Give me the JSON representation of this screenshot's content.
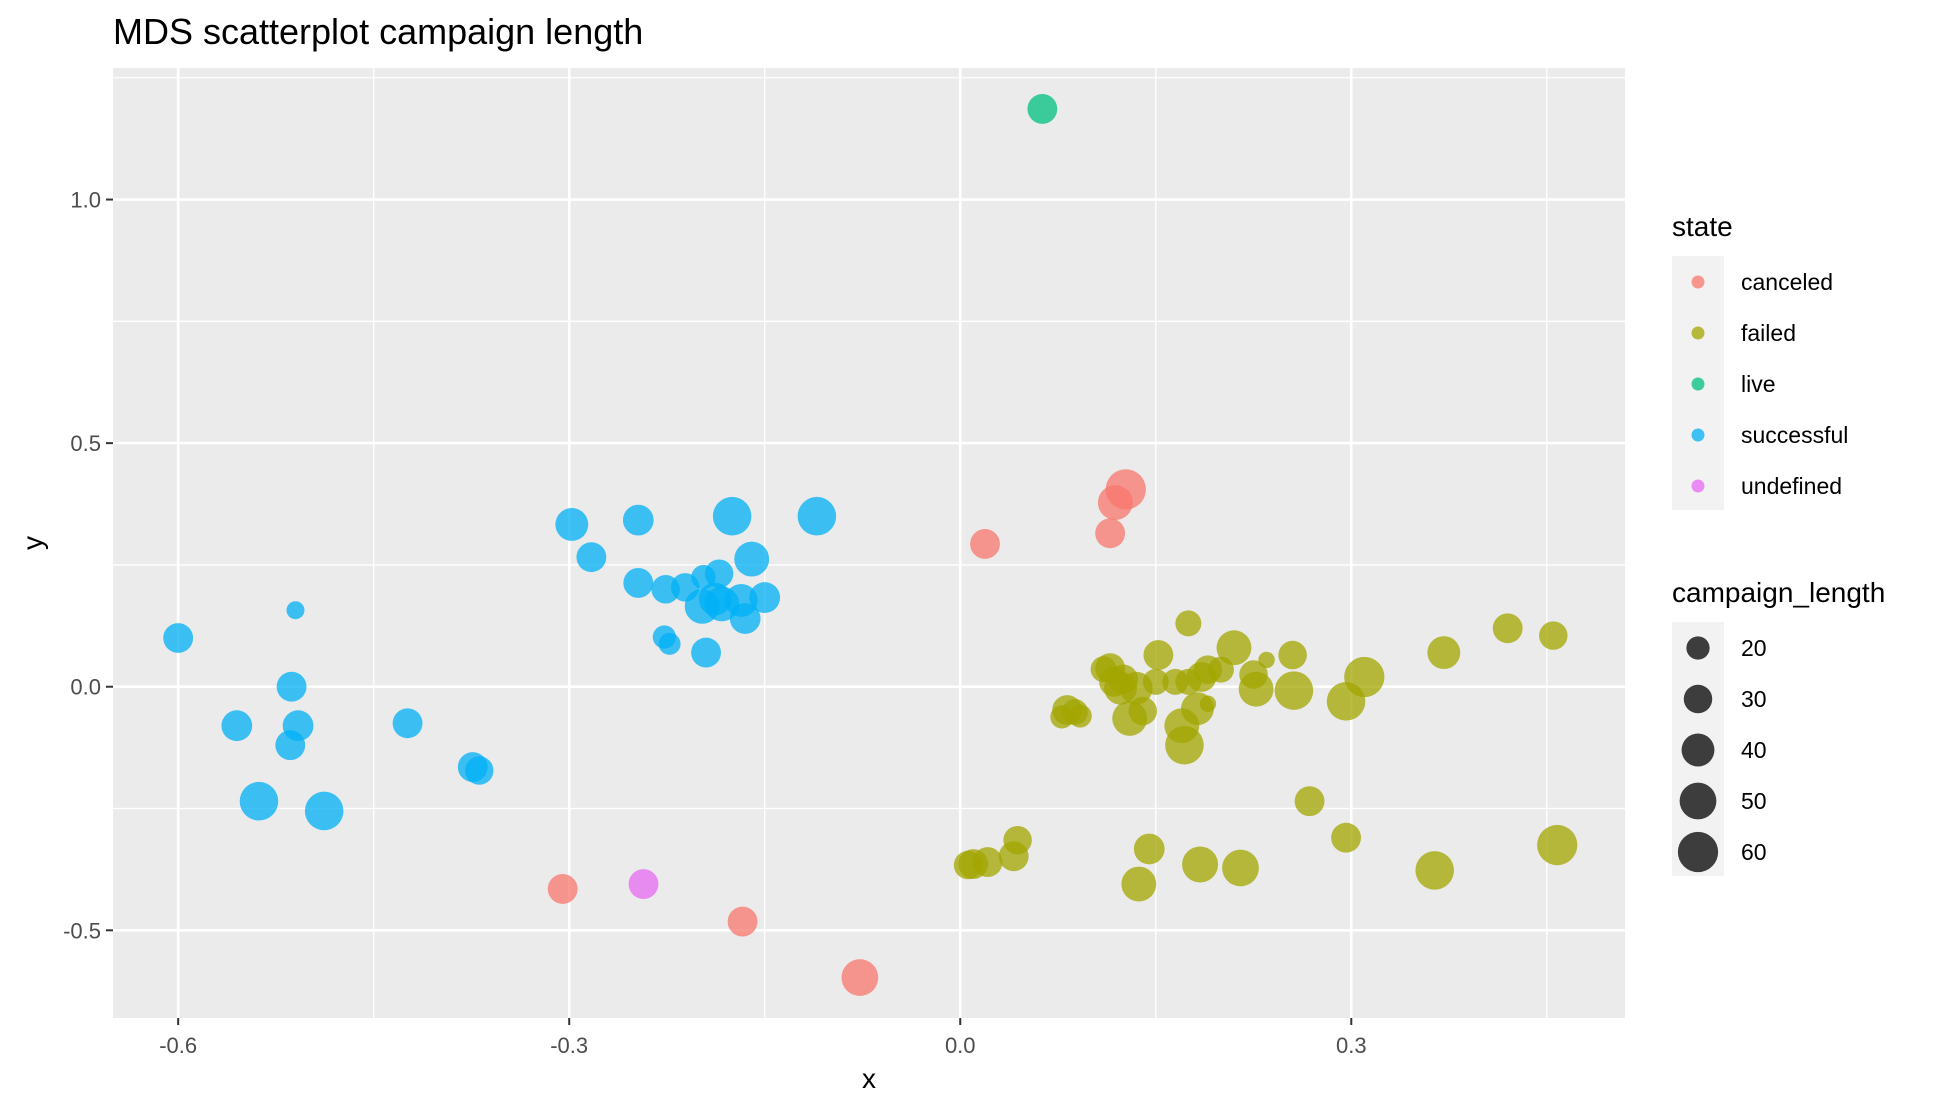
{
  "chart_data": {
    "type": "scatter",
    "title": "MDS scatterplot campaign length",
    "xlabel": "x",
    "ylabel": "y",
    "xlim": [
      -0.65,
      0.51
    ],
    "ylim": [
      -0.68,
      1.27
    ],
    "x_ticks": [
      -0.6,
      -0.3,
      0.0,
      0.3
    ],
    "x_tick_labels": [
      "-0.6",
      "-0.3",
      "0.0",
      "0.3"
    ],
    "y_ticks": [
      1.0,
      0.5,
      0.0,
      -0.5
    ],
    "y_tick_labels": [
      "1.0",
      "0.5",
      "0.0",
      "-0.5"
    ],
    "grid": true,
    "legend_position": "right",
    "legends": {
      "color": {
        "title": "state",
        "entries": [
          {
            "label": "canceled",
            "color": "#F8766D"
          },
          {
            "label": "failed",
            "color": "#A3A500"
          },
          {
            "label": "live",
            "color": "#00BF7D"
          },
          {
            "label": "successful",
            "color": "#00B0F6"
          },
          {
            "label": "undefined",
            "color": "#E76BF3"
          }
        ]
      },
      "size": {
        "title": "campaign_length",
        "entries": [
          {
            "label": "20",
            "value": 20
          },
          {
            "label": "30",
            "value": 30
          },
          {
            "label": "40",
            "value": 40
          },
          {
            "label": "50",
            "value": 50
          },
          {
            "label": "60",
            "value": 60
          }
        ]
      }
    },
    "series": [
      {
        "name": "canceled",
        "color": "#F8766D",
        "points": [
          {
            "x": 0.127,
            "y": 0.405,
            "size": 60
          },
          {
            "x": 0.119,
            "y": 0.378,
            "size": 45
          },
          {
            "x": 0.115,
            "y": 0.315,
            "size": 33
          },
          {
            "x": 0.019,
            "y": 0.293,
            "size": 33
          },
          {
            "x": -0.305,
            "y": -0.415,
            "size": 33
          },
          {
            "x": -0.167,
            "y": -0.482,
            "size": 33
          },
          {
            "x": -0.077,
            "y": -0.597,
            "size": 50
          }
        ]
      },
      {
        "name": "failed",
        "color": "#A3A500",
        "points": [
          {
            "x": 0.455,
            "y": 0.105,
            "size": 30
          },
          {
            "x": 0.42,
            "y": 0.12,
            "size": 33
          },
          {
            "x": 0.371,
            "y": 0.07,
            "size": 40
          },
          {
            "x": 0.31,
            "y": 0.02,
            "size": 60
          },
          {
            "x": 0.296,
            "y": -0.03,
            "size": 55
          },
          {
            "x": 0.255,
            "y": 0.065,
            "size": 30
          },
          {
            "x": 0.256,
            "y": -0.008,
            "size": 55
          },
          {
            "x": 0.235,
            "y": 0.055,
            "size": 10
          },
          {
            "x": 0.225,
            "y": 0.025,
            "size": 30
          },
          {
            "x": 0.227,
            "y": -0.005,
            "size": 45
          },
          {
            "x": 0.21,
            "y": 0.08,
            "size": 45
          },
          {
            "x": 0.2,
            "y": 0.035,
            "size": 25
          },
          {
            "x": 0.19,
            "y": 0.035,
            "size": 30
          },
          {
            "x": 0.185,
            "y": 0.02,
            "size": 33
          },
          {
            "x": 0.182,
            "y": -0.045,
            "size": 40
          },
          {
            "x": 0.175,
            "y": 0.13,
            "size": 25
          },
          {
            "x": 0.175,
            "y": 0.01,
            "size": 25
          },
          {
            "x": 0.19,
            "y": -0.035,
            "size": 10
          },
          {
            "x": 0.165,
            "y": 0.01,
            "size": 25
          },
          {
            "x": 0.152,
            "y": 0.065,
            "size": 33
          },
          {
            "x": 0.15,
            "y": 0.01,
            "size": 25
          },
          {
            "x": 0.17,
            "y": -0.08,
            "size": 45
          },
          {
            "x": 0.172,
            "y": -0.12,
            "size": 55
          },
          {
            "x": 0.14,
            "y": -0.05,
            "size": 30
          },
          {
            "x": 0.135,
            "y": -0.003,
            "size": 40
          },
          {
            "x": 0.13,
            "y": -0.065,
            "size": 45
          },
          {
            "x": 0.125,
            "y": 0.015,
            "size": 33
          },
          {
            "x": 0.118,
            "y": 0.01,
            "size": 33
          },
          {
            "x": 0.115,
            "y": 0.038,
            "size": 33
          },
          {
            "x": 0.11,
            "y": 0.036,
            "size": 25
          },
          {
            "x": 0.123,
            "y": -0.003,
            "size": 40
          },
          {
            "x": 0.082,
            "y": -0.048,
            "size": 33
          },
          {
            "x": 0.092,
            "y": -0.06,
            "size": 20
          },
          {
            "x": 0.088,
            "y": -0.052,
            "size": 25
          },
          {
            "x": 0.078,
            "y": -0.062,
            "size": 20
          },
          {
            "x": 0.268,
            "y": -0.235,
            "size": 33
          },
          {
            "x": 0.296,
            "y": -0.31,
            "size": 33
          },
          {
            "x": 0.145,
            "y": -0.333,
            "size": 35
          },
          {
            "x": 0.137,
            "y": -0.405,
            "size": 45
          },
          {
            "x": 0.184,
            "y": -0.365,
            "size": 48
          },
          {
            "x": 0.215,
            "y": -0.372,
            "size": 50
          },
          {
            "x": 0.364,
            "y": -0.377,
            "size": 55
          },
          {
            "x": 0.458,
            "y": -0.325,
            "size": 60
          },
          {
            "x": 0.044,
            "y": -0.315,
            "size": 30
          },
          {
            "x": 0.041,
            "y": -0.348,
            "size": 33
          },
          {
            "x": 0.021,
            "y": -0.36,
            "size": 33
          },
          {
            "x": 0.01,
            "y": -0.364,
            "size": 33
          },
          {
            "x": 0.006,
            "y": -0.366,
            "size": 30
          }
        ]
      },
      {
        "name": "live",
        "color": "#00BF7D",
        "points": [
          {
            "x": 0.063,
            "y": 1.186,
            "size": 33
          }
        ]
      },
      {
        "name": "successful",
        "color": "#00B0F6",
        "points": [
          {
            "x": -0.6,
            "y": 0.1,
            "size": 33
          },
          {
            "x": -0.51,
            "y": 0.157,
            "size": 12
          },
          {
            "x": -0.513,
            "y": 0.0,
            "size": 33
          },
          {
            "x": -0.555,
            "y": -0.08,
            "size": 35
          },
          {
            "x": -0.508,
            "y": -0.08,
            "size": 35
          },
          {
            "x": -0.514,
            "y": -0.12,
            "size": 33
          },
          {
            "x": -0.538,
            "y": -0.235,
            "size": 55
          },
          {
            "x": -0.488,
            "y": -0.255,
            "size": 55
          },
          {
            "x": -0.424,
            "y": -0.075,
            "size": 33
          },
          {
            "x": -0.374,
            "y": -0.165,
            "size": 33
          },
          {
            "x": -0.369,
            "y": -0.172,
            "size": 30
          },
          {
            "x": -0.298,
            "y": 0.333,
            "size": 40
          },
          {
            "x": -0.283,
            "y": 0.266,
            "size": 33
          },
          {
            "x": -0.247,
            "y": 0.342,
            "size": 35
          },
          {
            "x": -0.247,
            "y": 0.213,
            "size": 33
          },
          {
            "x": -0.226,
            "y": 0.2,
            "size": 30
          },
          {
            "x": -0.211,
            "y": 0.204,
            "size": 30
          },
          {
            "x": -0.227,
            "y": 0.102,
            "size": 20
          },
          {
            "x": -0.223,
            "y": 0.088,
            "size": 18
          },
          {
            "x": -0.197,
            "y": 0.225,
            "size": 22
          },
          {
            "x": -0.185,
            "y": 0.232,
            "size": 30
          },
          {
            "x": -0.198,
            "y": 0.165,
            "size": 45
          },
          {
            "x": -0.188,
            "y": 0.18,
            "size": 40
          },
          {
            "x": -0.183,
            "y": 0.17,
            "size": 45
          },
          {
            "x": -0.175,
            "y": 0.35,
            "size": 55
          },
          {
            "x": -0.168,
            "y": 0.177,
            "size": 40
          },
          {
            "x": -0.165,
            "y": 0.14,
            "size": 35
          },
          {
            "x": -0.16,
            "y": 0.262,
            "size": 45
          },
          {
            "x": -0.15,
            "y": 0.183,
            "size": 35
          },
          {
            "x": -0.195,
            "y": 0.07,
            "size": 33
          },
          {
            "x": -0.11,
            "y": 0.35,
            "size": 55
          }
        ]
      },
      {
        "name": "undefined",
        "color": "#E76BF3",
        "points": [
          {
            "x": -0.243,
            "y": -0.405,
            "size": 33
          }
        ]
      }
    ]
  }
}
